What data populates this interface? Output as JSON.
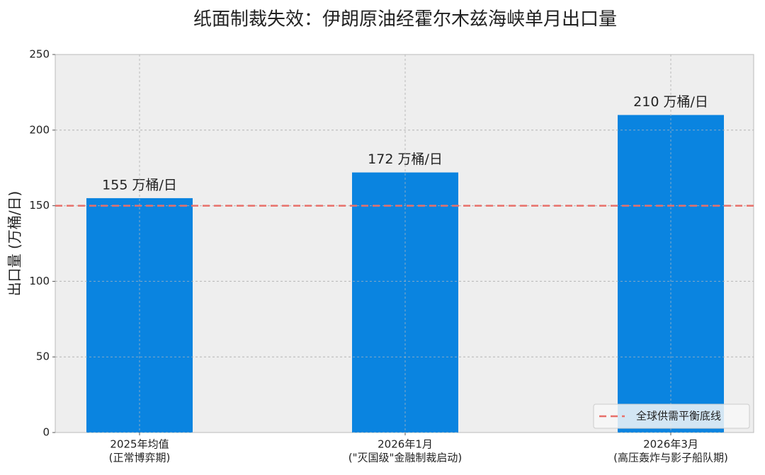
{
  "chart_data": {
    "type": "bar",
    "title": "纸面制裁失效：伊朗原油经霍尔木兹海峡单月出口量",
    "y_label": "出口量 (万桶/日)",
    "categories": [
      [
        "2025年均值",
        "(正常博弈期)"
      ],
      [
        "2026年1月",
        "(\"灭国级\"金融制裁启动)"
      ],
      [
        "2026年3月",
        "(高压轰炸与影子船队期)"
      ]
    ],
    "values": [
      155,
      172,
      210
    ],
    "value_labels": [
      "155 万桶/日",
      "172 万桶/日",
      "210 万桶/日"
    ],
    "color": "#0a84e0",
    "ylim": [
      0,
      250
    ],
    "yticks": [
      0,
      50,
      100,
      150,
      200,
      250
    ],
    "grid": true,
    "reference_line": {
      "value": 150,
      "label": "全球供需平衡底线",
      "color": "#e8706a"
    },
    "legend": "lower right"
  }
}
